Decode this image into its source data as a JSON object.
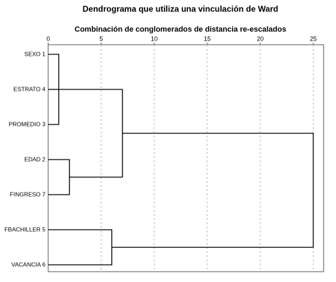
{
  "chart_data": {
    "type": "dendrogram",
    "title": "Dendrograma que utiliza una vinculación de Ward",
    "subtitle": "Combinación de conglomerados de distancia re-escalados",
    "leaves": [
      "SEXO 1",
      "ESTRATO 4",
      "PROMEDIO 3",
      "EDAD 2",
      "FINGRESO 7",
      "FBACHILLER 5",
      "VACANCIA 6"
    ],
    "merges": [
      {
        "left": 0,
        "right": 2,
        "height": 1
      },
      {
        "left": 7,
        "right": 1,
        "height": 1
      },
      {
        "left": 3,
        "right": 4,
        "height": 2
      },
      {
        "left": 8,
        "right": 9,
        "height": 7
      },
      {
        "left": 5,
        "right": 6,
        "height": 6
      },
      {
        "left": 10,
        "right": 11,
        "height": 25
      }
    ],
    "xlim": [
      0,
      25
    ],
    "xticks": [
      0,
      5,
      10,
      15,
      20,
      25
    ],
    "grid": true,
    "color": "#000000"
  }
}
